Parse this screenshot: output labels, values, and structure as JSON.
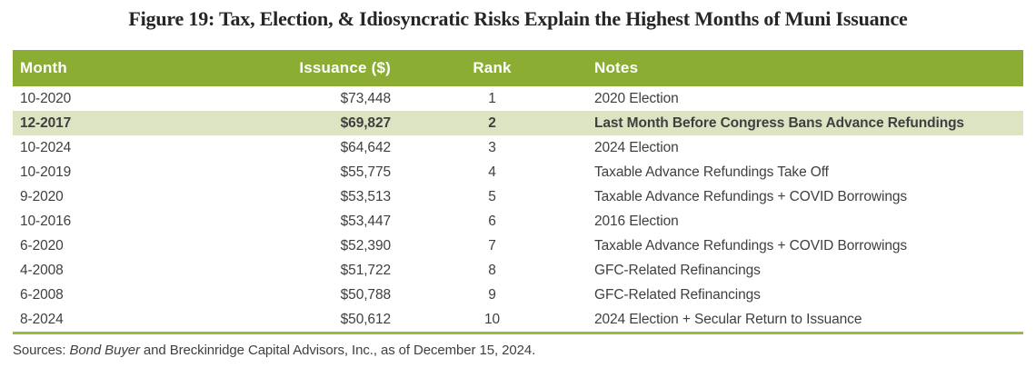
{
  "title": "Figure 19: Tax, Election, & Idiosyncratic Risks Explain the Highest Months of Muni Issuance",
  "colors": {
    "header_green": "#8cad33",
    "highlight_row": "#dde4c4",
    "bottom_rule_green": "#9cba3e",
    "body_text": "#3f3f3f",
    "header_text": "#ffffff"
  },
  "table": {
    "headers": [
      "Month",
      "Issuance ($)",
      "Rank",
      "Notes"
    ],
    "rows": [
      {
        "month": "10-2020",
        "issuance": "$73,448",
        "rank": "1",
        "notes": "2020 Election",
        "highlight": false
      },
      {
        "month": "12-2017",
        "issuance": "$69,827",
        "rank": "2",
        "notes": "Last Month Before Congress Bans Advance Refundings",
        "highlight": true
      },
      {
        "month": "10-2024",
        "issuance": "$64,642",
        "rank": "3",
        "notes": "2024 Election",
        "highlight": false
      },
      {
        "month": "10-2019",
        "issuance": "$55,775",
        "rank": "4",
        "notes": "Taxable Advance Refundings Take Off",
        "highlight": false
      },
      {
        "month": "9-2020",
        "issuance": "$53,513",
        "rank": "5",
        "notes": "Taxable Advance Refundings + COVID Borrowings",
        "highlight": false
      },
      {
        "month": "10-2016",
        "issuance": "$53,447",
        "rank": "6",
        "notes": "2016 Election",
        "highlight": false
      },
      {
        "month": "6-2020",
        "issuance": "$52,390",
        "rank": "7",
        "notes": "Taxable Advance Refundings + COVID Borrowings",
        "highlight": false
      },
      {
        "month": "4-2008",
        "issuance": "$51,722",
        "rank": "8",
        "notes": "GFC-Related Refinancings",
        "highlight": false
      },
      {
        "month": "6-2008",
        "issuance": "$50,788",
        "rank": "9",
        "notes": "GFC-Related Refinancings",
        "highlight": false
      },
      {
        "month": "8-2024",
        "issuance": "$50,612",
        "rank": "10",
        "notes": "2024 Election + Secular Return to Issuance",
        "highlight": false
      }
    ]
  },
  "footer": {
    "prefix": "Sources: ",
    "source_italic": "Bond Buyer",
    "suffix": " and Breckinridge Capital Advisors, Inc., as of December 15, 2024."
  },
  "chart_data": {
    "type": "table",
    "title": "Figure 19: Tax, Election, & Idiosyncratic Risks Explain the Highest Months of Muni Issuance",
    "columns": [
      "Month",
      "Issuance ($)",
      "Rank",
      "Notes"
    ],
    "rows": [
      [
        "10-2020",
        73448,
        1,
        "2020 Election"
      ],
      [
        "12-2017",
        69827,
        2,
        "Last Month Before Congress Bans Advance Refundings"
      ],
      [
        "10-2024",
        64642,
        3,
        "2024 Election"
      ],
      [
        "10-2019",
        55775,
        4,
        "Taxable Advance Refundings Take Off"
      ],
      [
        "9-2020",
        53513,
        5,
        "Taxable Advance Refundings + COVID Borrowings"
      ],
      [
        "10-2016",
        53447,
        6,
        "2016 Election"
      ],
      [
        "6-2020",
        52390,
        7,
        "Taxable Advance Refundings + COVID Borrowings"
      ],
      [
        "4-2008",
        51722,
        8,
        "GFC-Related Refinancings"
      ],
      [
        "6-2008",
        50788,
        9,
        "GFC-Related Refinancings"
      ],
      [
        "8-2024",
        50612,
        10,
        "2024 Election + Secular Return to Issuance"
      ]
    ],
    "highlighted_row_month": "12-2017",
    "source_note": "Sources: Bond Buyer and Breckinridge Capital Advisors, Inc., as of December 15, 2024."
  }
}
